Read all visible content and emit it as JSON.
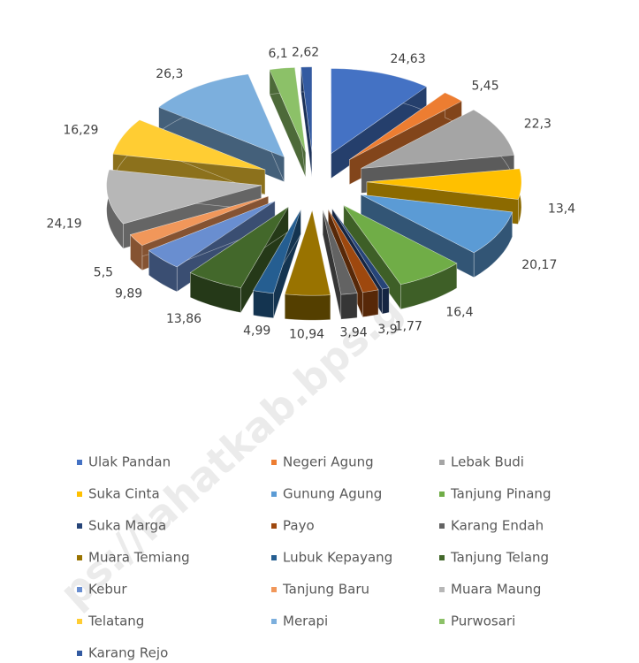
{
  "chart_data": {
    "type": "pie3d",
    "categories": [
      "Ulak Pandan",
      "Negeri Agung",
      "Lebak Budi",
      "Suka Cinta",
      "Gunung Agung",
      "Tanjung Pinang",
      "Suka Marga",
      "Payo",
      "Karang Endah",
      "Muara Temiang",
      "Lubuk Kepayang",
      "Tanjung Telang",
      "Kebur",
      "Tanjung Baru",
      "Muara Maung",
      "Telatang",
      "Merapi",
      "Purwosari",
      "Karang Rejo"
    ],
    "values": [
      24.63,
      5.45,
      22.3,
      13.4,
      20.17,
      16.4,
      1.77,
      3.9,
      3.94,
      10.94,
      4.99,
      13.86,
      9.89,
      5.5,
      24.19,
      16.29,
      26.3,
      6.1,
      2.62
    ],
    "value_labels": [
      "24,63",
      "5,45",
      "22,3",
      "13,4",
      "20,17",
      "16,4",
      "1,77",
      "3,9",
      "3,94",
      "10,94",
      "4,99",
      "13,86",
      "9,89",
      "5,5",
      "24,19",
      "16,29",
      "26,3",
      "6,1",
      "2,62"
    ],
    "colors": [
      "#4472c4",
      "#ed7d31",
      "#a5a5a5",
      "#ffc000",
      "#5b9bd5",
      "#70ad47",
      "#264478",
      "#9e480e",
      "#636363",
      "#997300",
      "#255e91",
      "#43682b",
      "#698ed0",
      "#f1975a",
      "#b7b7b7",
      "#ffcd33",
      "#7cafdd",
      "#8cc168",
      "#335aa1"
    ],
    "legend": "bottom",
    "watermark": "ps://lahatkab.bps.go.id"
  }
}
